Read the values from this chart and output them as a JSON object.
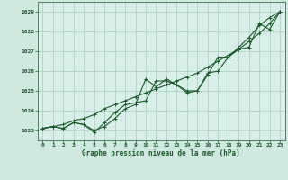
{
  "title": "Graphe pression niveau de la mer (hPa)",
  "background_color": "#cfe8e0",
  "plot_bg_color": "#d8eee8",
  "grid_color": "#a8cfc0",
  "line_color": "#1a5c2a",
  "xlim": [
    -0.5,
    23.5
  ],
  "ylim": [
    1022.5,
    1029.5
  ],
  "yticks": [
    1023,
    1024,
    1025,
    1026,
    1027,
    1028,
    1029
  ],
  "xticks": [
    0,
    1,
    2,
    3,
    4,
    5,
    6,
    7,
    8,
    9,
    10,
    11,
    12,
    13,
    14,
    15,
    16,
    17,
    18,
    19,
    20,
    21,
    22,
    23
  ],
  "series": [
    {
      "x": [
        0,
        1,
        2,
        3,
        4,
        5,
        6,
        7,
        8,
        9,
        10,
        11,
        12,
        13,
        14,
        15,
        16,
        17,
        18,
        19,
        20,
        21,
        22,
        23
      ],
      "y": [
        1023.1,
        1023.2,
        1023.3,
        1023.5,
        1023.6,
        1023.8,
        1024.1,
        1024.3,
        1024.5,
        1024.7,
        1024.9,
        1025.1,
        1025.3,
        1025.5,
        1025.7,
        1025.9,
        1026.2,
        1026.5,
        1026.8,
        1027.1,
        1027.5,
        1027.9,
        1028.4,
        1029.0
      ]
    },
    {
      "x": [
        0,
        1,
        2,
        3,
        4,
        5,
        6,
        7,
        8,
        9,
        10,
        11,
        12,
        13,
        14,
        15,
        16,
        17,
        18,
        19,
        20,
        21,
        22,
        23
      ],
      "y": [
        1023.1,
        1023.2,
        1023.1,
        1023.4,
        1023.3,
        1023.0,
        1023.2,
        1023.6,
        1024.1,
        1024.3,
        1025.6,
        1025.2,
        1025.6,
        1025.3,
        1025.0,
        1025.0,
        1025.9,
        1026.0,
        1026.7,
        1027.1,
        1027.2,
        1028.4,
        1028.1,
        1029.0
      ]
    },
    {
      "x": [
        0,
        1,
        2,
        3,
        4,
        5,
        6,
        7,
        8,
        9,
        10,
        11,
        12,
        13,
        14,
        15,
        16,
        17,
        18,
        19,
        20,
        21,
        22,
        23
      ],
      "y": [
        1023.1,
        1023.2,
        1023.1,
        1023.4,
        1023.3,
        1022.9,
        1023.4,
        1023.9,
        1024.3,
        1024.4,
        1024.5,
        1025.5,
        1025.5,
        1025.3,
        1024.9,
        1025.0,
        1025.8,
        1026.7,
        1026.7,
        1027.2,
        1027.7,
        1028.3,
        1028.7,
        1029.0
      ]
    }
  ],
  "marker": "+",
  "markersize": 3,
  "linewidth": 0.8
}
